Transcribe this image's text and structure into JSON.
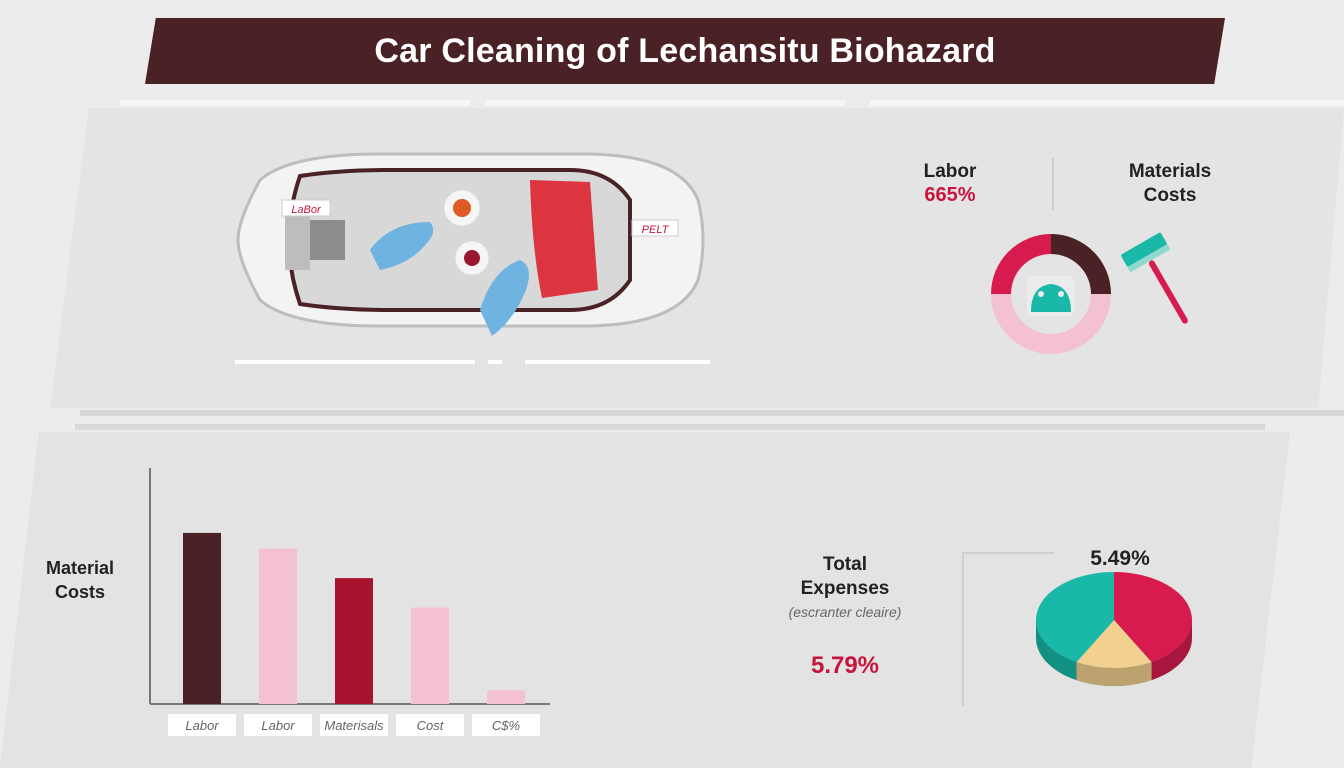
{
  "title": "Car Cleaning of Lechansitu Biohazard",
  "car": {
    "tag_left": "LaBor",
    "tag_right": "PELT"
  },
  "top_right": {
    "labor_label": "Labor",
    "labor_pct": "665%",
    "materials_label_line1": "Materials",
    "materials_label_line2": "Costs"
  },
  "bar_section": {
    "label_line1": "Material",
    "label_line2": "Costs"
  },
  "expenses": {
    "label_line1": "Total",
    "label_line2": "Expenses",
    "subtitle": "(escranter cleaire)",
    "pct": "5.79%",
    "pie_pct": "5.49%"
  },
  "colors": {
    "dark": "#4a2226",
    "pink": "#f4c1d0",
    "crimson": "#a8142f",
    "red": "#d81b4e",
    "teal": "#19b8a8",
    "sand": "#f2d08f"
  },
  "chart_data": [
    {
      "type": "bar",
      "title": "",
      "categories": [
        "Labor",
        "Labor",
        "Materisals",
        "Cost",
        "C$%"
      ],
      "values": [
        87,
        79,
        64,
        49,
        7
      ],
      "bar_colors": [
        "#4a2226",
        "#f4c1d0",
        "#a8142f",
        "#f4c1d0",
        "#f4c1d0"
      ],
      "ylim": [
        0,
        120
      ],
      "grid": false
    },
    {
      "type": "pie",
      "style": "3d",
      "slices": [
        {
          "color": "#d81b4e",
          "value": 42
        },
        {
          "color": "#f2d08f",
          "value": 16
        },
        {
          "color": "#19b8a8",
          "value": 42
        }
      ]
    },
    {
      "type": "pie",
      "style": "donut",
      "slices": [
        {
          "color": "#4a2226",
          "value": 25
        },
        {
          "color": "#f4c1d0",
          "value": 50
        },
        {
          "color": "#d81b4e",
          "value": 25
        }
      ]
    }
  ]
}
